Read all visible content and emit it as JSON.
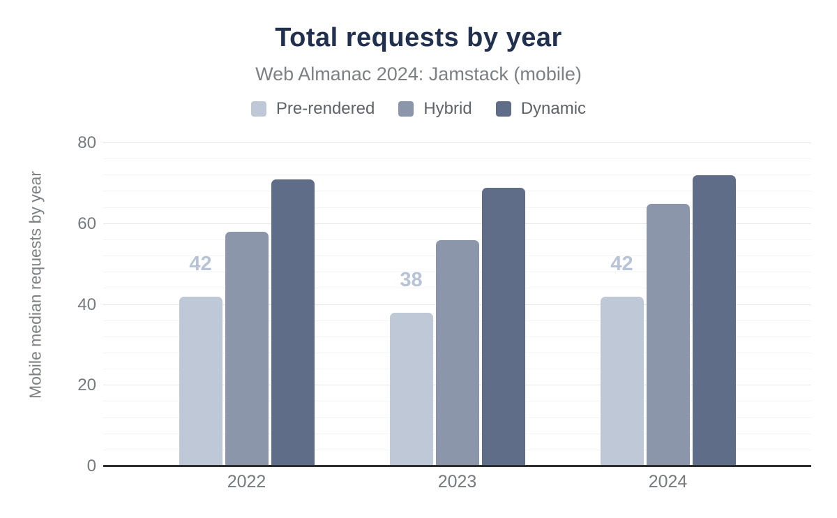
{
  "header": {
    "title": "Total requests by year",
    "subtitle": "Web Almanac 2024: Jamstack (mobile)"
  },
  "chart_data": {
    "type": "bar",
    "title": "Total requests by year",
    "subtitle": "Web Almanac 2024: Jamstack (mobile)",
    "categories": [
      "2022",
      "2023",
      "2024"
    ],
    "series": [
      {
        "name": "Pre-rendered",
        "color": "#bfc8d7",
        "values": [
          42,
          38,
          42
        ],
        "labels": [
          "42",
          "38",
          "42"
        ]
      },
      {
        "name": "Hybrid",
        "color": "#8b96ab",
        "values": [
          58,
          56,
          65
        ]
      },
      {
        "name": "Dynamic",
        "color": "#5f6d89",
        "values": [
          71,
          69,
          72
        ]
      }
    ],
    "xlabel": "",
    "ylabel": "Mobile median requests by year",
    "ylim": [
      0,
      80
    ],
    "yticks": [
      0,
      20,
      40,
      60,
      80
    ],
    "minor_grid_step": 4,
    "grid": true,
    "legend_position": "top",
    "data_label_series": "Pre-rendered",
    "data_label_color": "#b9c3d6"
  },
  "colors": {
    "background": "#ffffff",
    "title": "#21304f",
    "subtitle": "#7d8083",
    "axis_text": "#757a7e",
    "legend_text": "#5f6368",
    "axis_line": "#2e2e2e",
    "grid_major": "#e7e6e6",
    "grid_minor": "#f5f3f3"
  }
}
